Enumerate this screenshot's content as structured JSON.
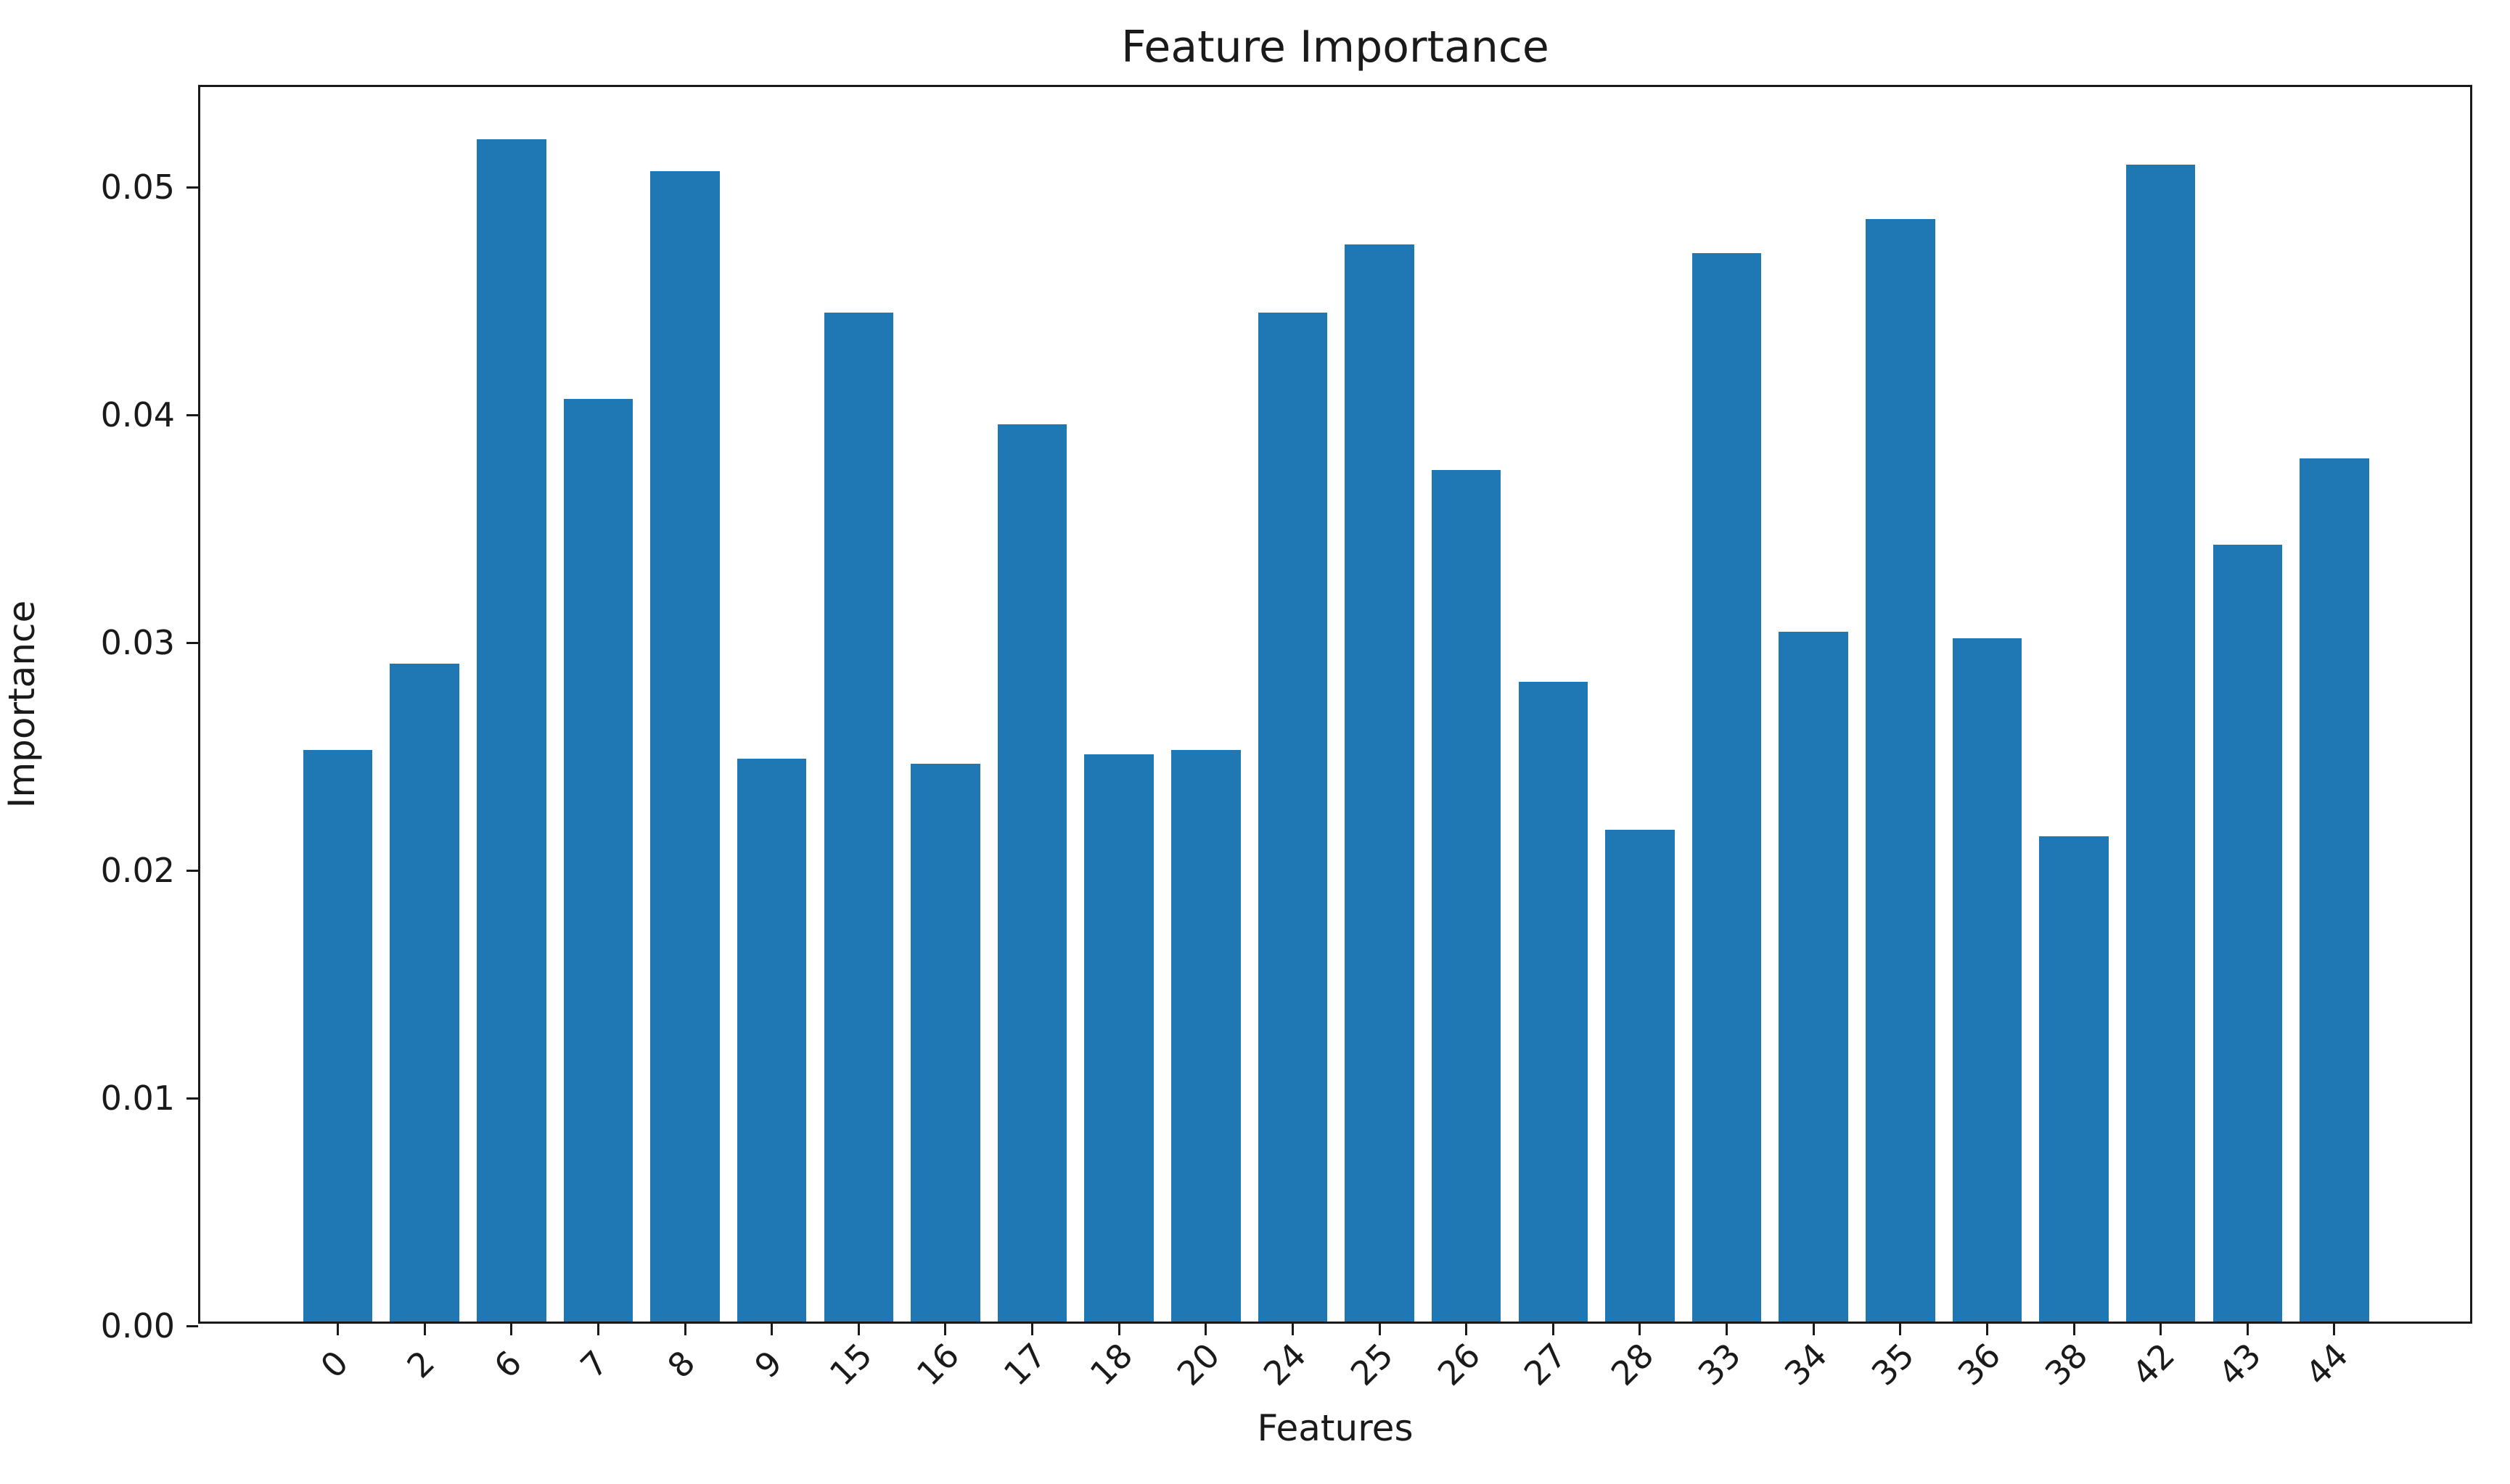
{
  "title": "Feature Importance",
  "x_axis_label": "Features",
  "y_axis_label": "Importance",
  "y_tick_labels": [
    "0.00",
    "0.01",
    "0.02",
    "0.03",
    "0.04",
    "0.05"
  ],
  "colors": {
    "bar": "#1f77b4",
    "axis": "#1a1a1a",
    "background": "#ffffff"
  },
  "chart_data": {
    "type": "bar",
    "title": "Feature Importance",
    "xlabel": "Features",
    "ylabel": "Importance",
    "categories": [
      "0",
      "2",
      "6",
      "7",
      "8",
      "9",
      "15",
      "16",
      "17",
      "18",
      "20",
      "24",
      "25",
      "26",
      "27",
      "28",
      "33",
      "34",
      "35",
      "36",
      "38",
      "42",
      "43",
      "44"
    ],
    "values": [
      0.0251,
      0.0289,
      0.0519,
      0.0405,
      0.0505,
      0.0247,
      0.0443,
      0.0245,
      0.0394,
      0.0249,
      0.0251,
      0.0443,
      0.0473,
      0.0374,
      0.0281,
      0.0216,
      0.0469,
      0.0303,
      0.0484,
      0.03,
      0.0213,
      0.0508,
      0.0341,
      0.0379
    ],
    "ylim": [
      0,
      0.0544
    ],
    "y_ticks": [
      0.0,
      0.01,
      0.02,
      0.03,
      0.04,
      0.05
    ],
    "x_tick_rotation": 45,
    "grid": false,
    "legend": false,
    "bar_color": "#1f77b4"
  }
}
